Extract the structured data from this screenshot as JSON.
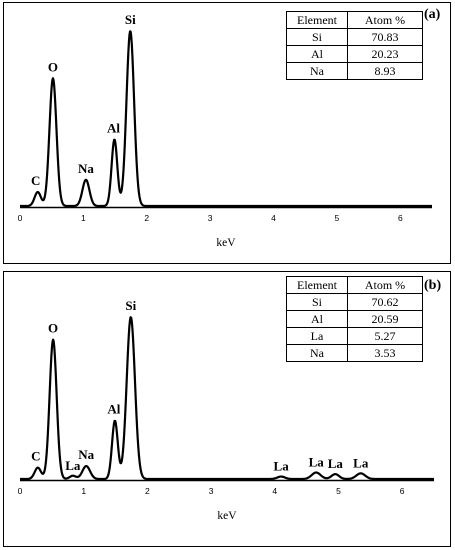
{
  "chart_data": [
    {
      "panel_label": "(a)",
      "type": "line",
      "xlabel": "keV",
      "ylabel": "",
      "xlim": [
        0,
        6.5
      ],
      "x_ticks": [
        "0",
        "1",
        "2",
        "3",
        "4",
        "5",
        "6"
      ],
      "peaks": [
        {
          "label": "C",
          "x": 0.28,
          "height": 0.08,
          "width": 0.05
        },
        {
          "label": "O",
          "x": 0.52,
          "height": 0.73,
          "width": 0.055
        },
        {
          "label": "Na",
          "x": 1.04,
          "height": 0.15,
          "width": 0.055
        },
        {
          "label": "Al",
          "x": 1.49,
          "height": 0.38,
          "width": 0.045
        },
        {
          "label": "Si",
          "x": 1.74,
          "height": 1.0,
          "width": 0.06
        }
      ],
      "table": {
        "headers": [
          "Element",
          "Atom %"
        ],
        "rows": [
          [
            "Si",
            "70.83"
          ],
          [
            "Al",
            "20.23"
          ],
          [
            "Na",
            "8.93"
          ]
        ]
      }
    },
    {
      "panel_label": "(b)",
      "type": "line",
      "xlabel": "keV",
      "ylabel": "",
      "xlim": [
        0,
        6.5
      ],
      "x_ticks": [
        "0",
        "1",
        "2",
        "3",
        "4",
        "5",
        "6"
      ],
      "peaks": [
        {
          "label": "C",
          "x": 0.28,
          "height": 0.07,
          "width": 0.05
        },
        {
          "label": "O",
          "x": 0.52,
          "height": 0.86,
          "width": 0.055
        },
        {
          "label": "La",
          "x": 0.83,
          "height": 0.02,
          "width": 0.05
        },
        {
          "label": "Na",
          "x": 1.04,
          "height": 0.08,
          "width": 0.06
        },
        {
          "label": "Al",
          "x": 1.49,
          "height": 0.36,
          "width": 0.045
        },
        {
          "label": "Si",
          "x": 1.74,
          "height": 1.0,
          "width": 0.065
        },
        {
          "label": "La",
          "x": 4.1,
          "height": 0.015,
          "width": 0.06
        },
        {
          "label": "La",
          "x": 4.65,
          "height": 0.04,
          "width": 0.07
        },
        {
          "label": "La",
          "x": 4.95,
          "height": 0.03,
          "width": 0.06
        },
        {
          "label": "La",
          "x": 5.35,
          "height": 0.035,
          "width": 0.07
        }
      ],
      "table": {
        "headers": [
          "Element",
          "Atom %"
        ],
        "rows": [
          [
            "Si",
            "70.62"
          ],
          [
            "Al",
            "20.59"
          ],
          [
            "La",
            "5.27"
          ],
          [
            "Na",
            "3.53"
          ]
        ]
      }
    }
  ]
}
